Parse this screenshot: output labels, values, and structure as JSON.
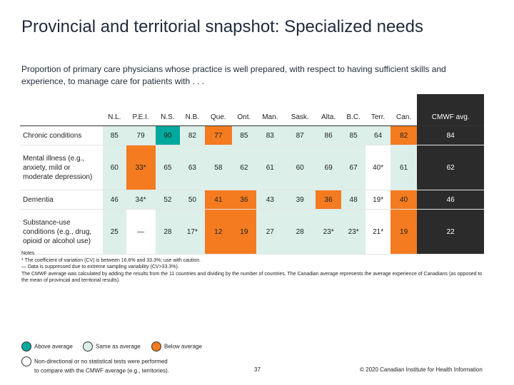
{
  "title": "Provincial and territorial snapshot: Specialized needs",
  "subtitle": "Proportion of primary care physicians whose practice is well prepared, with respect to having sufficient skills and experience, to manage care for patients with . . .",
  "columns": [
    "N.L.",
    "P.E.I.",
    "N.S.",
    "N.B.",
    "Que.",
    "Ont.",
    "Man.",
    "Sask.",
    "Alta.",
    "B.C.",
    "Terr.",
    "Can.",
    "CMWF avg."
  ],
  "rows": [
    {
      "label": "Chronic conditions",
      "cells": [
        {
          "v": "85",
          "c": "same"
        },
        {
          "v": "79",
          "c": "same"
        },
        {
          "v": "90",
          "c": "above"
        },
        {
          "v": "82",
          "c": "same"
        },
        {
          "v": "77",
          "c": "below"
        },
        {
          "v": "85",
          "c": "same"
        },
        {
          "v": "83",
          "c": "same"
        },
        {
          "v": "87",
          "c": "same"
        },
        {
          "v": "86",
          "c": "same"
        },
        {
          "v": "85",
          "c": "same"
        },
        {
          "v": "64",
          "c": "same"
        },
        {
          "v": "82",
          "c": "below"
        },
        {
          "v": "84",
          "c": "cmwf"
        }
      ]
    },
    {
      "label": "Mental illness (e.g., anxiety, mild or moderate depression)",
      "cells": [
        {
          "v": "60",
          "c": "same"
        },
        {
          "v": "33*",
          "c": "below"
        },
        {
          "v": "65",
          "c": "same"
        },
        {
          "v": "63",
          "c": "same"
        },
        {
          "v": "58",
          "c": "same"
        },
        {
          "v": "62",
          "c": "same"
        },
        {
          "v": "61",
          "c": "same"
        },
        {
          "v": "60",
          "c": "same"
        },
        {
          "v": "69",
          "c": "same"
        },
        {
          "v": "67",
          "c": "same"
        },
        {
          "v": "40*",
          "c": "na"
        },
        {
          "v": "61",
          "c": "same"
        },
        {
          "v": "62",
          "c": "cmwf"
        }
      ]
    },
    {
      "label": "Dementia",
      "cells": [
        {
          "v": "46",
          "c": "same"
        },
        {
          "v": "34*",
          "c": "same"
        },
        {
          "v": "52",
          "c": "same"
        },
        {
          "v": "50",
          "c": "same"
        },
        {
          "v": "41",
          "c": "below"
        },
        {
          "v": "36",
          "c": "below"
        },
        {
          "v": "43",
          "c": "same"
        },
        {
          "v": "39",
          "c": "same"
        },
        {
          "v": "36",
          "c": "below"
        },
        {
          "v": "48",
          "c": "same"
        },
        {
          "v": "19*",
          "c": "na"
        },
        {
          "v": "40",
          "c": "below"
        },
        {
          "v": "46",
          "c": "cmwf"
        }
      ]
    },
    {
      "label": "Substance-use conditions (e.g., drug, opioid or alcohol use)",
      "cells": [
        {
          "v": "25",
          "c": "same"
        },
        {
          "v": "—",
          "c": "na"
        },
        {
          "v": "28",
          "c": "same"
        },
        {
          "v": "17*",
          "c": "same"
        },
        {
          "v": "12",
          "c": "below"
        },
        {
          "v": "19",
          "c": "below"
        },
        {
          "v": "27",
          "c": "same"
        },
        {
          "v": "28",
          "c": "same"
        },
        {
          "v": "23*",
          "c": "same"
        },
        {
          "v": "23*",
          "c": "same"
        },
        {
          "v": "21*",
          "c": "na"
        },
        {
          "v": "19",
          "c": "below"
        },
        {
          "v": "22",
          "c": "cmwf"
        }
      ]
    }
  ],
  "notes": {
    "heading": "Notes",
    "line1": "* The coefficient of variation (CV) is between 16.6% and 33.3%; use with caution.",
    "line2": "— Data is suppressed due to extreme sampling variability (CV>33.3%).",
    "line3": "The CMWF average was calculated by adding the results from the 11 countries and dividing by the number of countries. The Canadian average represents the average experience of Canadians (as opposed to the mean of provincial and territorial results)."
  },
  "legend": {
    "above": "Above average",
    "same": "Same as average",
    "below": "Below average",
    "na_line1": "Non-directional or no statistical tests were performed",
    "na_line2": "to compare with the CMWF average (e.g., territories)."
  },
  "colors": {
    "above": "#00a99d",
    "same": "#dcefe9",
    "below": "#f47b20",
    "na": "#ffffff",
    "cmwf": "#2b2b2b"
  },
  "footer": {
    "page": "37",
    "copyright": "© 2020 Canadian Institute for Health Information"
  }
}
